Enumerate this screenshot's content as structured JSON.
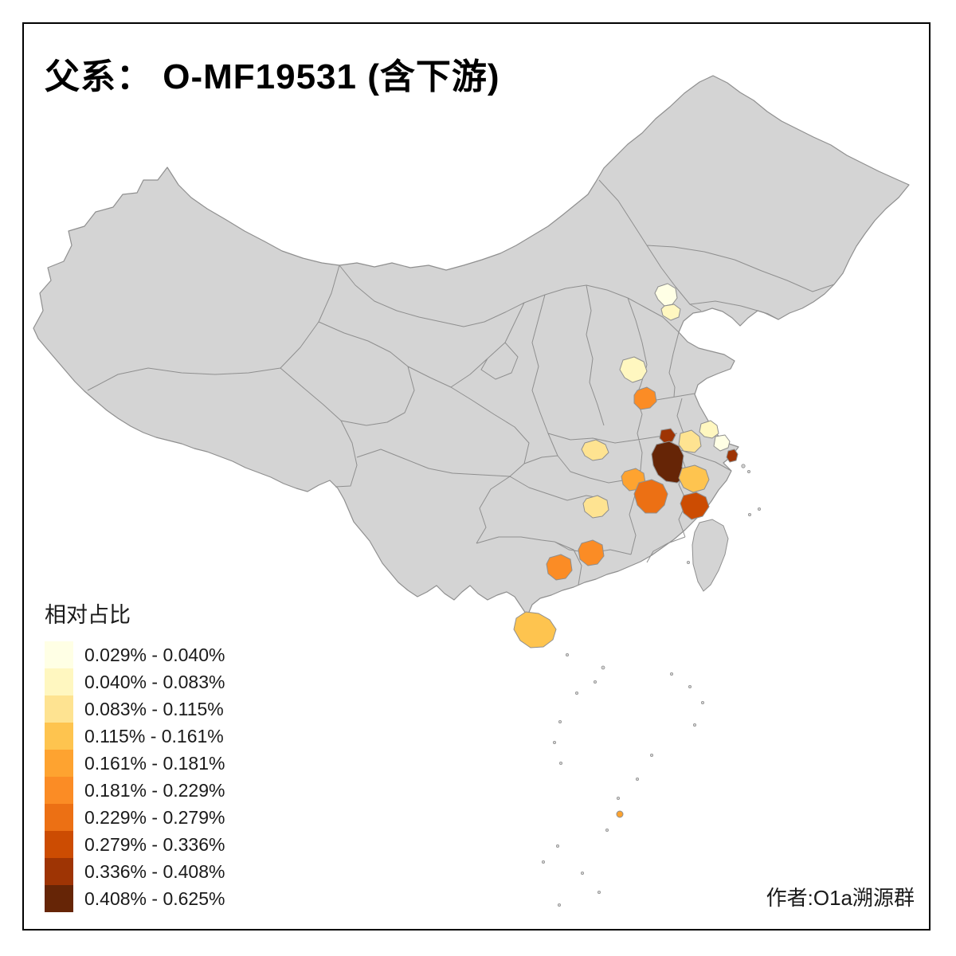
{
  "page": {
    "title": "父系： O-MF19531 (含下游)",
    "attribution": "作者:O1a溯源群"
  },
  "map": {
    "land_color": "#D4D4D4",
    "boundary_color": "#8F8F8F",
    "regions": [
      {
        "id": "r01",
        "bucket": 0
      },
      {
        "id": "r02",
        "bucket": 1
      },
      {
        "id": "r03",
        "bucket": 1
      },
      {
        "id": "r04",
        "bucket": 5
      },
      {
        "id": "r05",
        "bucket": 2
      },
      {
        "id": "r06",
        "bucket": 8
      },
      {
        "id": "r07",
        "bucket": 9
      },
      {
        "id": "r08",
        "bucket": 2
      },
      {
        "id": "r09",
        "bucket": 1
      },
      {
        "id": "r10",
        "bucket": 0
      },
      {
        "id": "r11",
        "bucket": 8
      },
      {
        "id": "r12",
        "bucket": 4
      },
      {
        "id": "r13",
        "bucket": 6
      },
      {
        "id": "r14",
        "bucket": 3
      },
      {
        "id": "r15",
        "bucket": 7
      },
      {
        "id": "r16",
        "bucket": 2
      },
      {
        "id": "r17",
        "bucket": 5
      },
      {
        "id": "r18",
        "bucket": 5
      },
      {
        "id": "hainan",
        "bucket": 3
      },
      {
        "id": "island-dot",
        "bucket": 4
      }
    ]
  },
  "legend": {
    "title": "相对占比",
    "items": [
      {
        "range": "0.029% - 0.040%",
        "color": "#FFFFE5"
      },
      {
        "range": "0.040% - 0.083%",
        "color": "#FFF7C0"
      },
      {
        "range": "0.083% - 0.115%",
        "color": "#FEE391"
      },
      {
        "range": "0.115% - 0.161%",
        "color": "#FEC44F"
      },
      {
        "range": "0.161% - 0.181%",
        "color": "#FEA330"
      },
      {
        "range": "0.181% - 0.229%",
        "color": "#FB8C25"
      },
      {
        "range": "0.229% - 0.279%",
        "color": "#EC7014"
      },
      {
        "range": "0.279% - 0.336%",
        "color": "#CC4C02"
      },
      {
        "range": "0.336% - 0.408%",
        "color": "#9E3404"
      },
      {
        "range": "0.408% - 0.625%",
        "color": "#662506"
      }
    ]
  }
}
